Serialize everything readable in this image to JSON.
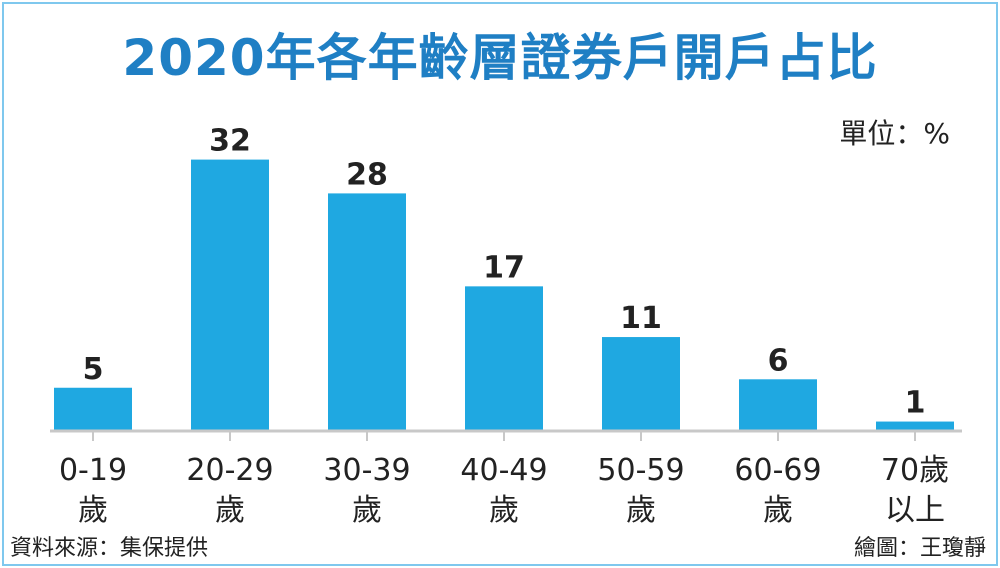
{
  "title": "2020年各年齡層證券戶開戶占比",
  "unit": "單位：%",
  "source": "資料來源：集保提供",
  "credit": "繪圖：王瓊靜",
  "colors": {
    "bar": "#1fa8e1",
    "title": "#1f7fc4",
    "axis": "#c8c8c8",
    "border": "#7fc8ee"
  },
  "chart_data": {
    "type": "bar",
    "title": "2020年各年齡層證券戶開戶占比",
    "ylabel": "單位：%",
    "categories": [
      [
        "0-19",
        "歲"
      ],
      [
        "20-29",
        "歲"
      ],
      [
        "30-39",
        "歲"
      ],
      [
        "40-49",
        "歲"
      ],
      [
        "50-59",
        "歲"
      ],
      [
        "60-69",
        "歲"
      ],
      [
        "70歲",
        "以上"
      ]
    ],
    "values": [
      5,
      32,
      28,
      17,
      11,
      6,
      1
    ],
    "grid": false,
    "data_labels": true
  }
}
